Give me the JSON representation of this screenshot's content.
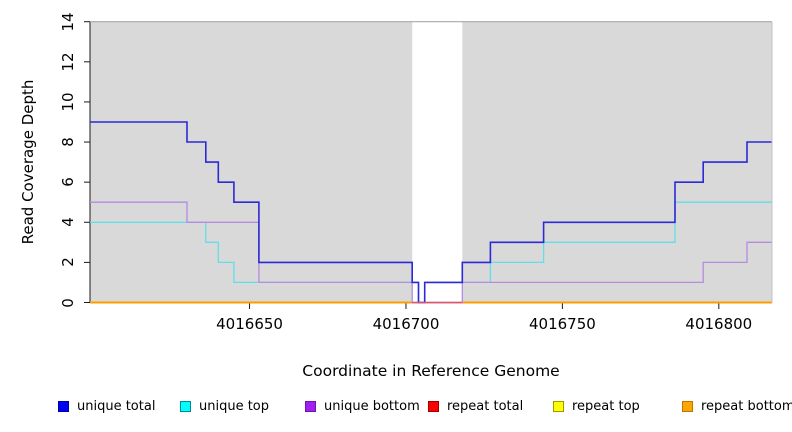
{
  "chart_data": {
    "type": "line",
    "subtype": "step",
    "title": "",
    "xlabel": "Coordinate in Reference Genome",
    "ylabel": "Read Coverage Depth",
    "xlim": [
      4016599,
      4016817
    ],
    "ylim": [
      0,
      14
    ],
    "xticks": [
      4016650,
      4016700,
      4016750,
      4016800
    ],
    "yticks": [
      0,
      2,
      4,
      6,
      8,
      10,
      12,
      14
    ],
    "grid": false,
    "plot_bg_color": "#d9d9d9",
    "plot_border_top_color": "#a8a8a8",
    "plot_border_right_color": "#c2c2c2",
    "axis_color": "#1a1a1a",
    "masked_region": {
      "x1": 4016702,
      "x2": 4016718,
      "fill": "#ffffff",
      "zero_line_color": "#d5537e"
    },
    "legend_position": "bottom",
    "series": [
      {
        "name": "unique total",
        "line_color": "#2b29d8",
        "legend_fill": "#0000f0",
        "legend_border": "#0000a0",
        "line_width": 1.6,
        "points": [
          [
            4016599,
            9
          ],
          [
            4016630,
            8
          ],
          [
            4016636,
            7
          ],
          [
            4016640,
            6
          ],
          [
            4016645,
            5
          ],
          [
            4016653,
            2
          ],
          [
            4016702,
            1
          ],
          [
            4016704,
            0
          ],
          [
            4016706,
            1
          ],
          [
            4016718,
            2
          ],
          [
            4016727,
            3
          ],
          [
            4016744,
            4
          ],
          [
            4016786,
            6
          ],
          [
            4016795,
            7
          ],
          [
            4016809,
            8
          ],
          [
            4016817,
            8
          ]
        ]
      },
      {
        "name": "unique top",
        "line_color": "#63dde8",
        "legend_fill": "#00ffff",
        "legend_border": "#008b9b",
        "line_width": 1.3,
        "points": [
          [
            4016599,
            4
          ],
          [
            4016636,
            3
          ],
          [
            4016640,
            2
          ],
          [
            4016645,
            1
          ],
          [
            4016704,
            0
          ],
          [
            4016706,
            1
          ],
          [
            4016727,
            2
          ],
          [
            4016744,
            3
          ],
          [
            4016786,
            5
          ],
          [
            4016817,
            5
          ]
        ]
      },
      {
        "name": "unique bottom",
        "line_color": "#b48ce0",
        "legend_fill": "#a020f0",
        "legend_border": "#6c16ae",
        "line_width": 1.3,
        "points": [
          [
            4016599,
            5
          ],
          [
            4016630,
            4
          ],
          [
            4016653,
            1
          ],
          [
            4016702,
            0
          ],
          [
            4016718,
            1
          ],
          [
            4016795,
            2
          ],
          [
            4016809,
            3
          ],
          [
            4016817,
            3
          ]
        ]
      },
      {
        "name": "repeat total",
        "line_color": "#e03030",
        "legend_fill": "#ff0000",
        "legend_border": "#990000",
        "line_width": 1.3,
        "points": [
          [
            4016599,
            0
          ],
          [
            4016817,
            0
          ]
        ]
      },
      {
        "name": "repeat top",
        "line_color": "#f2e93c",
        "legend_fill": "#ffff00",
        "legend_border": "#9b9b00",
        "line_width": 1.3,
        "points": [
          [
            4016599,
            0
          ],
          [
            4016817,
            0
          ]
        ]
      },
      {
        "name": "repeat bottom",
        "line_color": "#ff9d00",
        "legend_fill": "#ffa500",
        "legend_border": "#bf7400",
        "line_width": 2,
        "points": [
          [
            4016599,
            0
          ],
          [
            4016817,
            0
          ]
        ]
      }
    ]
  }
}
